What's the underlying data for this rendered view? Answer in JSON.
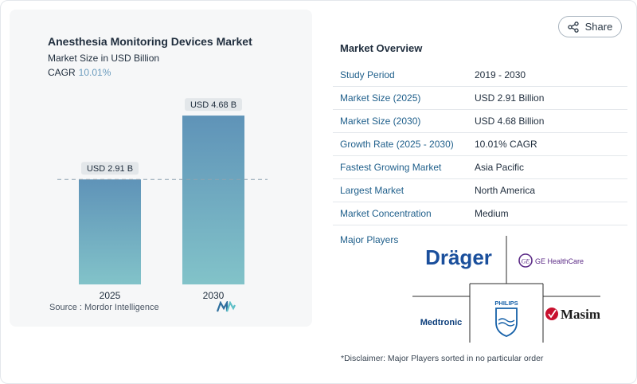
{
  "chart": {
    "title": "Anesthesia Monitoring Devices Market",
    "subtitle": "Market Size in USD Billion",
    "cagr_label": "CAGR",
    "cagr_value": "10.01%",
    "source": "Source :  Mordor Intelligence"
  },
  "chart_data": {
    "type": "bar",
    "title": "Anesthesia Monitoring Devices Market",
    "subtitle": "Market Size in USD Billion",
    "categories": [
      "2025",
      "2030"
    ],
    "values": [
      2.91,
      4.68
    ],
    "data_labels": [
      "USD 2.91 B",
      "USD 4.68 B"
    ],
    "ylim": [
      0,
      5.3
    ],
    "xlabel": "",
    "ylabel": "",
    "grid": false,
    "reference_line_value": 2.91,
    "bar_color_top": "#5f93b8",
    "bar_color_bottom": "#82c3c9"
  },
  "share": {
    "label": "Share",
    "icon": "share-icon"
  },
  "overview": {
    "title": "Market Overview",
    "rows": [
      {
        "key": "Study Period",
        "value": "2019 - 2030"
      },
      {
        "key": "Market Size (2025)",
        "value": "USD 2.91 Billion"
      },
      {
        "key": "Market Size (2030)",
        "value": "USD 4.68 Billion"
      },
      {
        "key": "Growth Rate (2025 - 2030)",
        "value": "10.01% CAGR"
      },
      {
        "key": "Fastest Growing Market",
        "value": "Asia Pacific"
      },
      {
        "key": "Largest Market",
        "value": "North America"
      },
      {
        "key": "Market Concentration",
        "value": "Medium"
      }
    ],
    "major_players_label": "Major Players",
    "players": [
      "Dräger",
      "GE HealthCare",
      "Medtronic",
      "PHILIPS",
      "Masimo"
    ],
    "disclaimer": "*Disclaimer: Major Players sorted in no particular order"
  },
  "colors": {
    "key_text": "#1f5f8b",
    "cagr_accent": "#6a9bbd",
    "draeger_blue": "#1a4f9c",
    "ge_purple": "#5b2a86",
    "medtronic_blue": "#0b3d7a",
    "philips_blue": "#1560a8",
    "masimo_red": "#c8102e"
  }
}
